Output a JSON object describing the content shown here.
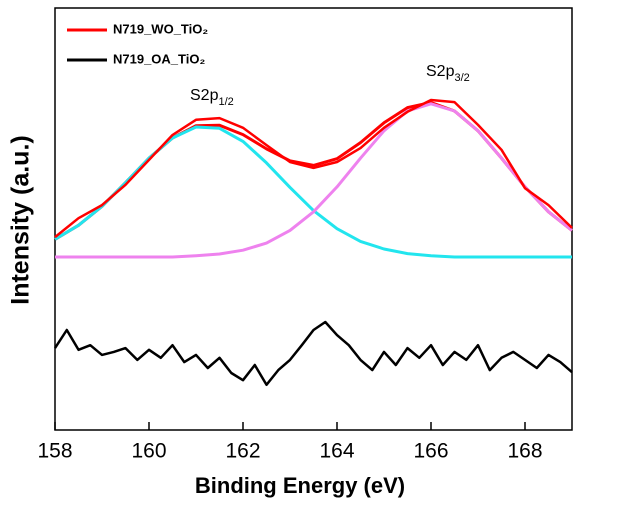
{
  "chart_data": {
    "type": "line",
    "x_label": "Binding Energy (eV)",
    "y_label": "Intensity (a.u.)",
    "xlim": [
      158,
      169
    ],
    "xticks": [
      158,
      160,
      162,
      164,
      166,
      168
    ],
    "ylim": [
      0,
      100
    ],
    "legend": "top-left",
    "series": [
      {
        "name": "N719_WO_TiO₂",
        "color": "#ff0000",
        "x": [
          158,
          158.5,
          159,
          159.5,
          160,
          160.5,
          161,
          161.5,
          162,
          162.5,
          163,
          163.5,
          164,
          164.5,
          165,
          165.5,
          166,
          166.5,
          167,
          167.5,
          168,
          168.5,
          169
        ],
        "values": [
          45.7,
          50.2,
          53.3,
          58.1,
          64.0,
          69.9,
          73.5,
          73.9,
          71.6,
          67.5,
          63.5,
          62.1,
          63.5,
          66.8,
          71.6,
          75.4,
          78.2,
          77.7,
          72.3,
          66.4,
          57.3,
          53.3,
          47.9
        ]
      },
      {
        "name": "N719_OA_TiO₂",
        "color": "#000000",
        "x": [
          158,
          158.25,
          158.5,
          158.75,
          159,
          159.25,
          159.5,
          159.75,
          160,
          160.25,
          160.5,
          160.75,
          161,
          161.25,
          161.5,
          161.75,
          162,
          162.25,
          162.5,
          162.75,
          163,
          163.25,
          163.5,
          163.75,
          164,
          164.25,
          164.5,
          164.75,
          165,
          165.25,
          165.5,
          165.75,
          166,
          166.25,
          166.5,
          166.75,
          167,
          167.25,
          167.5,
          167.75,
          168,
          168.25,
          168.5,
          168.75,
          169
        ],
        "values": [
          19.4,
          23.7,
          19.0,
          20.1,
          17.8,
          18.5,
          19.4,
          16.6,
          19.0,
          17.1,
          20.1,
          16.1,
          17.8,
          14.7,
          17.1,
          13.5,
          11.8,
          15.4,
          10.7,
          14.2,
          16.6,
          20.1,
          23.7,
          25.6,
          22.5,
          20.1,
          16.6,
          14.2,
          18.5,
          15.4,
          19.4,
          17.1,
          20.1,
          15.4,
          18.5,
          16.6,
          20.1,
          14.2,
          17.1,
          18.5,
          16.6,
          14.7,
          17.8,
          16.1,
          13.7
        ]
      }
    ],
    "fits": [
      {
        "color": "#ff0000",
        "x": [
          158,
          158.5,
          159,
          159.5,
          160,
          160.5,
          161,
          161.5,
          162,
          162.5,
          163,
          163.5,
          164,
          164.5,
          165,
          165.5,
          166,
          166.5,
          167,
          167.5,
          168,
          168.5,
          169
        ],
        "values": [
          45.2,
          48.5,
          53.0,
          58.6,
          64.4,
          69.2,
          72.1,
          72.2,
          70.0,
          66.6,
          63.8,
          62.7,
          64.3,
          68.1,
          72.8,
          76.4,
          77.6,
          75.6,
          70.9,
          64.4,
          57.6,
          51.7,
          47.3
        ]
      },
      {
        "color": "#22e5ee",
        "x": [
          158,
          158.5,
          159,
          159.5,
          160,
          160.5,
          161,
          161.5,
          162,
          162.5,
          163,
          163.5,
          164,
          164.5,
          165,
          165.5,
          166,
          166.5,
          167,
          167.5,
          168,
          168.5,
          169
        ],
        "values": [
          45.2,
          48.5,
          53.0,
          58.6,
          64.4,
          69.2,
          71.8,
          71.5,
          68.4,
          63.3,
          57.5,
          52.0,
          47.7,
          44.7,
          42.9,
          41.8,
          41.3,
          41.0,
          41.0,
          41.0,
          41.0,
          41.0,
          41.0
        ]
      },
      {
        "color": "#ee82ee",
        "x": [
          158,
          158.5,
          159,
          159.5,
          160,
          160.5,
          161,
          161.5,
          162,
          162.5,
          163,
          163.5,
          164,
          164.5,
          165,
          165.5,
          166,
          166.5,
          167,
          167.5,
          168,
          168.5,
          169
        ],
        "values": [
          41.0,
          41.0,
          41.0,
          41.0,
          41.0,
          41.0,
          41.3,
          41.7,
          42.6,
          44.3,
          47.3,
          51.7,
          57.6,
          64.4,
          70.9,
          75.6,
          77.3,
          75.6,
          70.9,
          64.4,
          57.6,
          51.7,
          47.3
        ]
      }
    ],
    "annotations": [
      {
        "text": "S2p",
        "sub": "1/2"
      },
      {
        "text": "S2p",
        "sub": "3/2"
      }
    ]
  }
}
